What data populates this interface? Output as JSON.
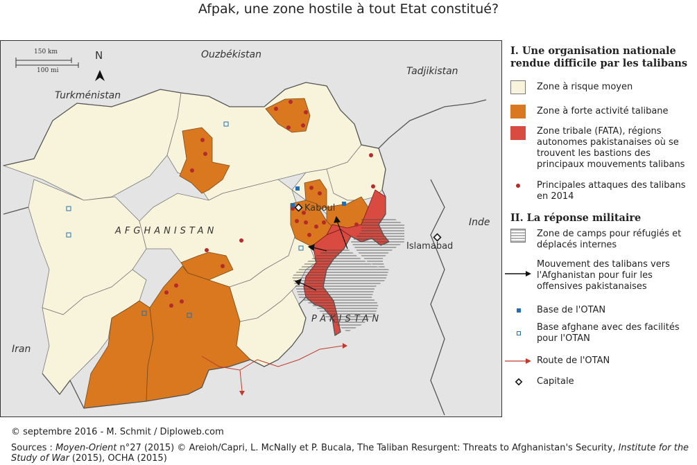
{
  "title": "Afpak, une zone hostile à tout Etat constitué?",
  "map": {
    "north": "N",
    "scale": {
      "km": "150 km",
      "mi": "100 mi"
    },
    "labels": {
      "ouzbekistan": "Ouzbékistan",
      "tadjikistan": "Tadjikistan",
      "turkmenistan": "Turkménistan",
      "afghanistan": "AFGHANISTAN",
      "pakistan": "PAKISTAN",
      "iran": "Iran",
      "inde": "Inde",
      "kaboul": "Kaboul",
      "islamabad": "Islamabad"
    },
    "colors": {
      "background": "#e4e4e4",
      "moyen": "#f8f4dc",
      "forte": "#d9781f",
      "tribale": "#d94a41",
      "attaque": "#b52a2a",
      "otan": "#1f6fb5",
      "route": "#c0392b"
    }
  },
  "legend": {
    "section1": "I. Une organisation nationale rendue difficile par les talibans",
    "moyen": "Zone à risque moyen",
    "forte": "Zone à forte activité talibane",
    "tribale": "Zone tribale (FATA), régions autonomes pakistanaises où se trouvent les bastions des principaux mouvements talibans",
    "attaques": "Principales attaques des talibans en 2014",
    "section2": "II. La réponse militaire",
    "camps": "Zone de camps pour réfugiés et déplacés internes",
    "mouvement": "Mouvement des talibans vers l'Afghanistan pour fuir les offensives pakistanaises",
    "base_otan": "Base de l'OTAN",
    "base_afghane": "Base afghane avec des facilités pour l'OTAN",
    "route": "Route de l'OTAN",
    "capitale": "Capitale"
  },
  "footer": {
    "credit": "© septembre 2016 - M. Schmit / Diploweb.com",
    "sources_prefix": "Sources : ",
    "sources_mo": "Moyen-Orient",
    "sources_mid": " n°27 (2015) © Areioh/Capri, L. McNally et P. Bucala, The Taliban Resurgent: Threats to Afghanistan's Security, ",
    "sources_isw": "Institute for the Study of War",
    "sources_end": " (2015), OCHA (2015)"
  }
}
